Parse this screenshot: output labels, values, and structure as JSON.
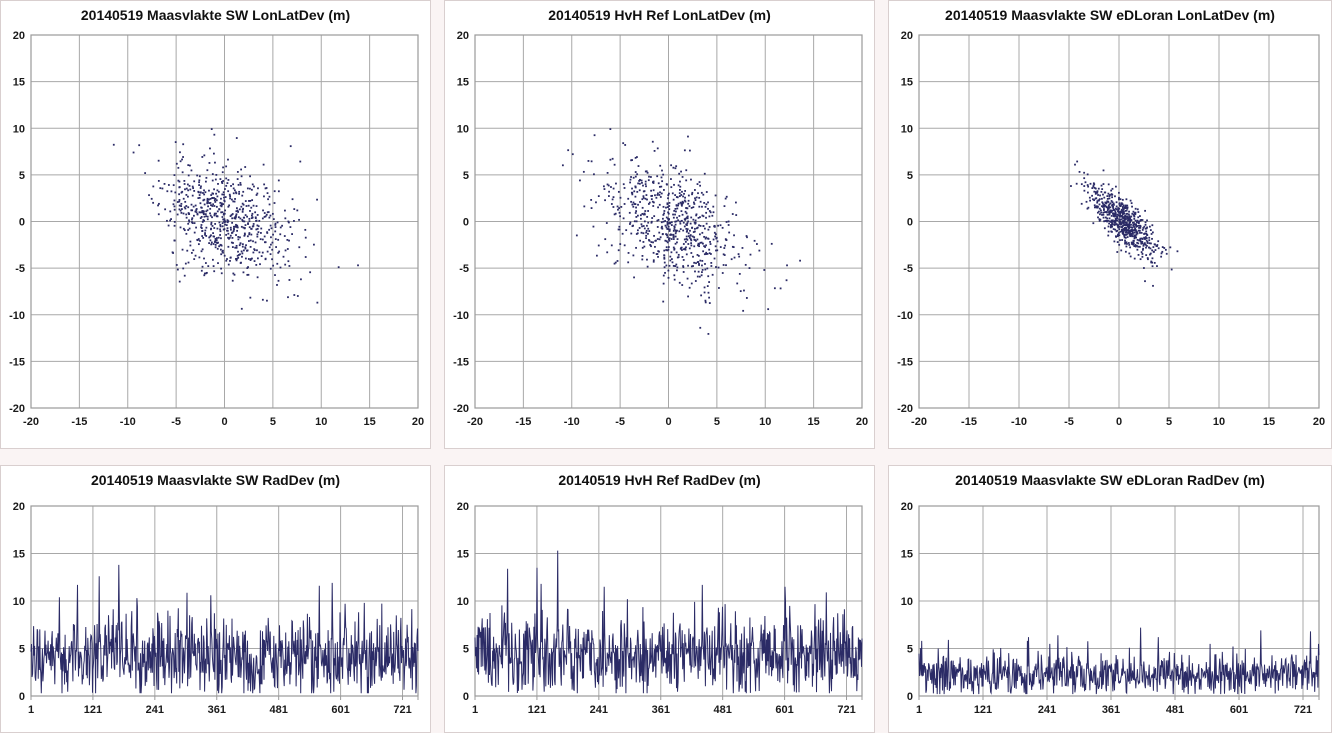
{
  "page": {
    "background": "#faf4f4",
    "panel_background": "#ffffff",
    "grid_color": "#a8a8a8",
    "border_color": "#9a9a9a",
    "label_color": "#1a1a1a"
  },
  "chart_data": [
    {
      "type": "scatter",
      "title": "20140519 Maasvlakte SW LonLatDev (m)",
      "xlim": [
        -20,
        20
      ],
      "ylim": [
        -20,
        20
      ],
      "xticks": [
        -20,
        -15,
        -10,
        -5,
        0,
        5,
        10,
        15,
        20
      ],
      "yticks": [
        -20,
        -15,
        -10,
        -5,
        0,
        5,
        10,
        15,
        20
      ],
      "grid": true,
      "legend": "none",
      "marker_color": "#2b2b66",
      "n_points": 700,
      "seed": 11,
      "center": [
        0,
        0.3
      ],
      "sigma": [
        3.3,
        3.1
      ],
      "rho": -0.35,
      "outliers": [
        [
          11.8,
          -4.9
        ],
        [
          13.8,
          -4.7
        ],
        [
          9.6,
          -8.7
        ],
        [
          -9.4,
          7.4
        ],
        [
          7.9,
          -6.2
        ]
      ]
    },
    {
      "type": "scatter",
      "title": "20140519 HvH Ref LonLatDev (m)",
      "xlim": [
        -20,
        20
      ],
      "ylim": [
        -20,
        20
      ],
      "xticks": [
        -20,
        -15,
        -10,
        -5,
        0,
        5,
        10,
        15,
        20
      ],
      "yticks": [
        -20,
        -15,
        -10,
        -5,
        0,
        5,
        10,
        15,
        20
      ],
      "grid": true,
      "legend": "none",
      "marker_color": "#2b2b66",
      "n_points": 700,
      "seed": 22,
      "center": [
        0.3,
        -0.2
      ],
      "sigma": [
        3.6,
        3.3
      ],
      "rho": -0.4,
      "outliers": [
        [
          10.3,
          -9.4
        ],
        [
          12.2,
          -6.3
        ],
        [
          8.1,
          -8.2
        ],
        [
          13.6,
          -4.2
        ],
        [
          7.8,
          -7.4
        ],
        [
          9.9,
          -5.2
        ]
      ]
    },
    {
      "type": "scatter",
      "title": "20140519 Maasvlakte SW eDLoran LonLatDev (m)",
      "xlim": [
        -20,
        20
      ],
      "ylim": [
        -20,
        20
      ],
      "xticks": [
        -20,
        -15,
        -10,
        -5,
        0,
        5,
        10,
        15,
        20
      ],
      "yticks": [
        -20,
        -15,
        -10,
        -5,
        0,
        5,
        10,
        15,
        20
      ],
      "grid": true,
      "legend": "none",
      "marker_color": "#2b2b66",
      "n_points": 650,
      "seed": 33,
      "center": [
        0.4,
        0
      ],
      "sigma": [
        1.7,
        1.9
      ],
      "rho": -0.78,
      "outliers": [
        [
          2.6,
          -6.4
        ],
        [
          3.4,
          -6.9
        ],
        [
          -4.4,
          6.1
        ]
      ]
    },
    {
      "type": "line",
      "title": "20140519 Maasvlakte SW RadDev (m)",
      "xlim": [
        1,
        751
      ],
      "ylim": [
        0,
        20
      ],
      "xticks": [
        1,
        121,
        241,
        361,
        481,
        601,
        721
      ],
      "yticks": [
        0,
        5,
        10,
        15,
        20
      ],
      "grid": true,
      "legend": "none",
      "line_color": "#2b2b66",
      "n_points": 750,
      "seed": 44,
      "mean": 4.0,
      "sd": 2.1,
      "min": 0.3,
      "max": 12.0,
      "peaks": [
        [
          55,
          10.4
        ],
        [
          90,
          11.7
        ],
        [
          132,
          12.6
        ],
        [
          170,
          13.8
        ],
        [
          205,
          10.3
        ],
        [
          348,
          10.6
        ],
        [
          558,
          11.6
        ],
        [
          583,
          11.9
        ],
        [
          645,
          9.8
        ],
        [
          728,
          7.5
        ]
      ]
    },
    {
      "type": "line",
      "title": "20140519 HvH Ref RadDev (m)",
      "xlim": [
        1,
        751
      ],
      "ylim": [
        0,
        20
      ],
      "xticks": [
        1,
        121,
        241,
        361,
        481,
        601,
        721
      ],
      "yticks": [
        0,
        5,
        10,
        15,
        20
      ],
      "grid": true,
      "legend": "none",
      "line_color": "#2b2b66",
      "n_points": 750,
      "seed": 55,
      "mean": 4.2,
      "sd": 2.2,
      "min": 0.3,
      "max": 12.0,
      "peaks": [
        [
          63,
          13.4
        ],
        [
          120,
          13.5
        ],
        [
          128,
          11.8
        ],
        [
          160,
          15.3
        ],
        [
          250,
          11.5
        ],
        [
          295,
          10.2
        ],
        [
          440,
          11.7
        ],
        [
          600,
          11.5
        ],
        [
          680,
          10.9
        ]
      ]
    },
    {
      "type": "line",
      "title": "20140519 Maasvlakte SW eDLoran RadDev (m)",
      "xlim": [
        1,
        751
      ],
      "ylim": [
        0,
        20
      ],
      "xticks": [
        1,
        121,
        241,
        361,
        481,
        601,
        721
      ],
      "yticks": [
        0,
        5,
        10,
        15,
        20
      ],
      "grid": true,
      "legend": "none",
      "line_color": "#2b2b66",
      "n_points": 750,
      "seed": 66,
      "mean": 2.3,
      "sd": 1.1,
      "min": 0.2,
      "max": 5.8,
      "peaks": [
        [
          55,
          5.9
        ],
        [
          205,
          6.2
        ],
        [
          260,
          6.4
        ],
        [
          415,
          7.2
        ],
        [
          448,
          6.2
        ],
        [
          640,
          6.9
        ],
        [
          733,
          6.8
        ]
      ]
    }
  ]
}
